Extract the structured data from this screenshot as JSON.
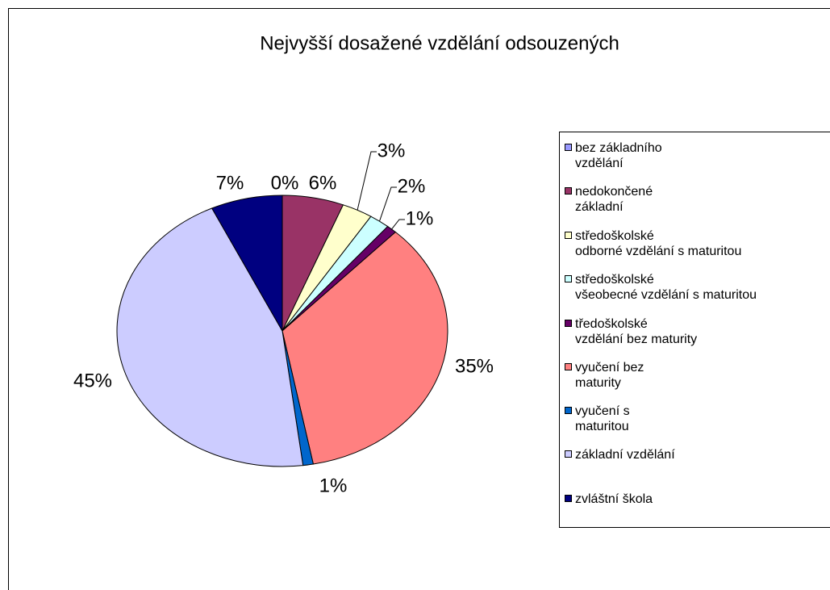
{
  "chart_data": {
    "type": "pie",
    "title": "Nejvyšší dosažené vzdělání odsouzených",
    "series": [
      {
        "name": "bez základního\nvzdělání",
        "color": "#9999ff",
        "values": [
          0
        ]
      },
      {
        "name": "nedokončené\nzákladní",
        "color": "#993366",
        "values": [
          6
        ]
      },
      {
        "name": "středoškolské\nodborné vzdělání s maturitou",
        "color": "#ffffcc",
        "values": [
          3
        ]
      },
      {
        "name": "středoškolské\nvšeobecné vzdělání s maturitou",
        "color": "#ccffff",
        "values": [
          2
        ]
      },
      {
        "name": "tředoškolské\nvzdělání bez maturity",
        "color": "#660066",
        "values": [
          1
        ]
      },
      {
        "name": "vyučení bez\nmaturity",
        "color": "#ff8080",
        "values": [
          35
        ]
      },
      {
        "name": "vyučení s\nmaturitou",
        "color": "#0066cc",
        "values": [
          1
        ]
      },
      {
        "name": "základní vzdělání",
        "color": "#ccccff",
        "values": [
          45
        ]
      },
      {
        "name": "zvláštní škola",
        "color": "#000080",
        "values": [
          7
        ]
      }
    ],
    "value_labels": [
      "0%",
      "6%",
      "3%",
      "2%",
      "1%",
      "35%",
      "1%",
      "45%",
      "7%"
    ],
    "legend": "right"
  }
}
